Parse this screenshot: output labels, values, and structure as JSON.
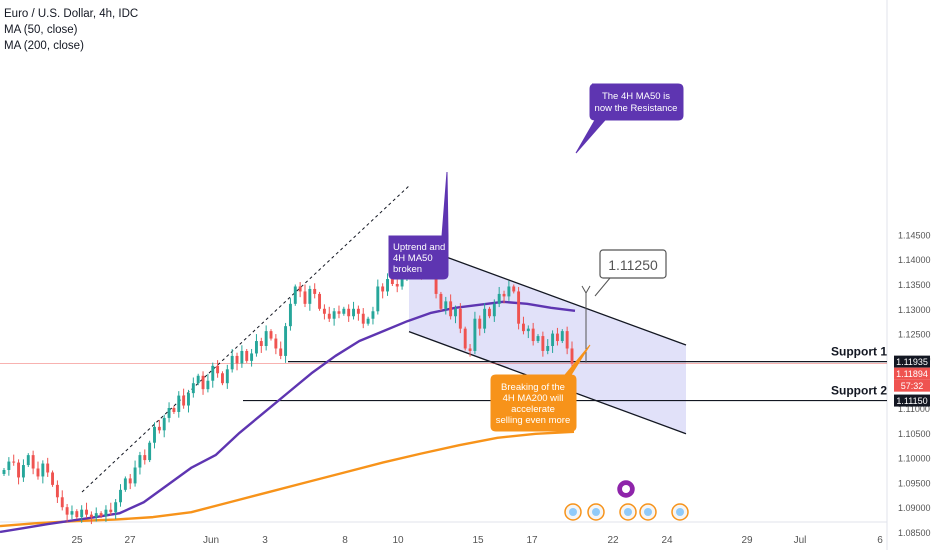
{
  "header": {
    "symbol": "Euro / U.S. Dollar, 4h, IDC",
    "indicators": [
      "MA (50, close)",
      "MA (200, close)"
    ]
  },
  "colors": {
    "up": "#26a69a",
    "down": "#ef5350",
    "ma50": "#5e35b1",
    "ma200": "#f7931a",
    "channel_fill": "#dcdcf8",
    "last_price": "#ef5350"
  },
  "axis": {
    "y_ticks": [
      "1.14500",
      "1.14000",
      "1.13500",
      "1.13000",
      "1.12500",
      "1.12000",
      "1.11500",
      "1.11000",
      "1.10500",
      "1.10000",
      "1.09500",
      "1.09000",
      "1.08500"
    ],
    "x_ticks": [
      "25",
      "27",
      "Jun",
      "3",
      "8",
      "10",
      "15",
      "17",
      "22",
      "24",
      "29",
      "Jul",
      "6"
    ],
    "price_tags": [
      {
        "text": "1.11935",
        "style": "dark"
      },
      {
        "text": "1.11894",
        "style": "red"
      },
      {
        "text": "57:32",
        "style": "red"
      },
      {
        "text": "1.11150",
        "style": "dark"
      }
    ]
  },
  "annotations": {
    "support1": "Support 1",
    "support2": "Support 2",
    "target": "1.11250",
    "callout_ma50_line1": "The 4H MA50 is",
    "callout_ma50_line2": "now the Resistance",
    "callout_uptrend_line1": "Uptrend and",
    "callout_uptrend_line2": "4H MA50",
    "callout_uptrend_line3": "broken",
    "callout_ma200_line1": "Breaking of the",
    "callout_ma200_line2": "4H MA200 will",
    "callout_ma200_line3": "accelerate",
    "callout_ma200_line4": "selling even more"
  },
  "chart_data": {
    "type": "candlestick",
    "symbol": "EUR/USD",
    "timeframe": "4h",
    "y_range": [
      1.0835,
      1.1485
    ],
    "x_range": [
      "May 20",
      "Jul 7"
    ],
    "levels": {
      "support1": 1.11935,
      "support2": 1.1115,
      "target": 1.1125,
      "last_price": 1.11894
    },
    "closes": [
      1.0975,
      1.0992,
      1.099,
      1.096,
      1.0985,
      1.1005,
      1.0978,
      1.0962,
      1.0988,
      1.097,
      1.0945,
      1.092,
      1.09,
      1.0885,
      1.0892,
      1.088,
      1.0895,
      1.0885,
      1.088,
      1.0888,
      1.0882,
      1.0895,
      1.089,
      1.091,
      1.0935,
      1.0958,
      1.0948,
      1.098,
      1.1005,
      1.0995,
      1.103,
      1.1062,
      1.1055,
      1.108,
      1.11,
      1.1092,
      1.1125,
      1.1105,
      1.113,
      1.115,
      1.1165,
      1.1138,
      1.1155,
      1.1185,
      1.117,
      1.115,
      1.1178,
      1.1205,
      1.119,
      1.1215,
      1.1195,
      1.121,
      1.1235,
      1.1225,
      1.1255,
      1.124,
      1.122,
      1.1205,
      1.1265,
      1.131,
      1.1345,
      1.1335,
      1.131,
      1.134,
      1.133,
      1.13,
      1.129,
      1.128,
      1.1295,
      1.129,
      1.13,
      1.1285,
      1.13,
      1.129,
      1.127,
      1.128,
      1.1295,
      1.1345,
      1.1335,
      1.136,
      1.135,
      1.1345,
      1.137,
      1.1385,
      1.1375,
      1.1395,
      1.137,
      1.1385,
      1.138,
      1.133,
      1.13,
      1.1315,
      1.1285,
      1.13,
      1.126,
      1.122,
      1.1215,
      1.128,
      1.126,
      1.13,
      1.1285,
      1.131,
      1.133,
      1.1325,
      1.1345,
      1.1335,
      1.127,
      1.1255,
      1.126,
      1.1235,
      1.1245,
      1.1215,
      1.1225,
      1.125,
      1.1235,
      1.1255,
      1.122,
      1.119
    ],
    "ma50": [
      1.085,
      1.0858,
      1.0866,
      1.0873,
      1.088,
      1.0888,
      1.091,
      1.0945,
      1.098,
      1.1005,
      1.105,
      1.109,
      1.113,
      1.117,
      1.1205,
      1.1235,
      1.1255,
      1.1275,
      1.1292,
      1.1302,
      1.1308,
      1.1314,
      1.131,
      1.1302,
      1.1296
    ],
    "ma200": [
      1.0862,
      1.0868,
      1.0872,
      1.0875,
      1.088,
      1.089,
      1.091,
      1.093,
      1.095,
      1.097,
      1.099,
      1.1008,
      1.1025,
      1.104,
      1.1048,
      1.1052
    ],
    "channel": {
      "upper": [
        1.1432,
        1.1227
      ],
      "lower": [
        1.1254,
        1.1048
      ]
    },
    "type_note": "candlestick"
  }
}
